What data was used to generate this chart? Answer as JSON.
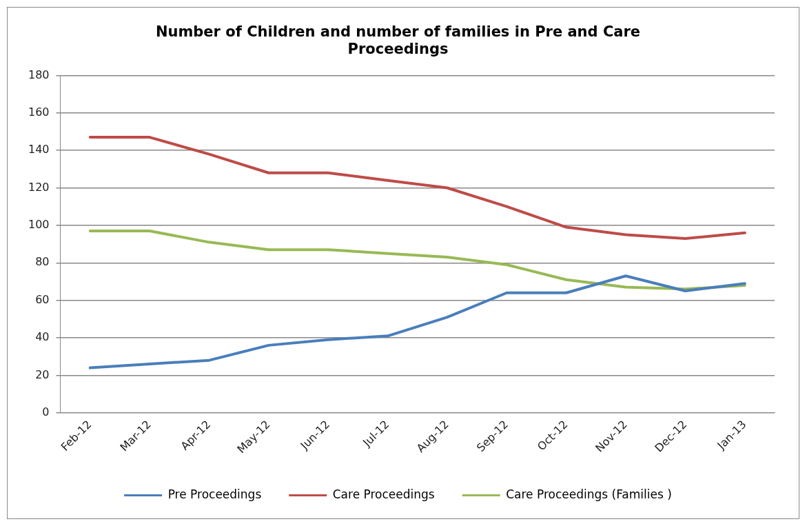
{
  "chart_data": {
    "type": "line",
    "title": "Number of Children and number of families in Pre and Care Proceedings",
    "categories": [
      "Feb-12",
      "Mar-12",
      "Apr-12",
      "May-12",
      "Jun-12",
      "Jul-12",
      "Aug-12",
      "Sep-12",
      "Oct-12",
      "Nov-12",
      "Dec-12",
      "Jan-13"
    ],
    "series": [
      {
        "name": "Pre Proceedings",
        "color": "#4a7ebb",
        "values": [
          24,
          26,
          28,
          36,
          39,
          41,
          51,
          64,
          64,
          73,
          65,
          69
        ]
      },
      {
        "name": "Care Proceedings",
        "color": "#be4b48",
        "values": [
          147,
          147,
          138,
          128,
          128,
          124,
          120,
          110,
          99,
          95,
          93,
          96
        ]
      },
      {
        "name": "Care Proceedings (Families )",
        "color": "#98b954",
        "values": [
          97,
          97,
          91,
          87,
          87,
          85,
          83,
          79,
          71,
          67,
          66,
          68
        ]
      }
    ],
    "ylim": [
      0,
      180
    ],
    "yticks": [
      0,
      20,
      40,
      60,
      80,
      100,
      120,
      140,
      160,
      180
    ],
    "grid": "y",
    "legend": "bottom",
    "marker": "none",
    "line_style": "solid"
  }
}
